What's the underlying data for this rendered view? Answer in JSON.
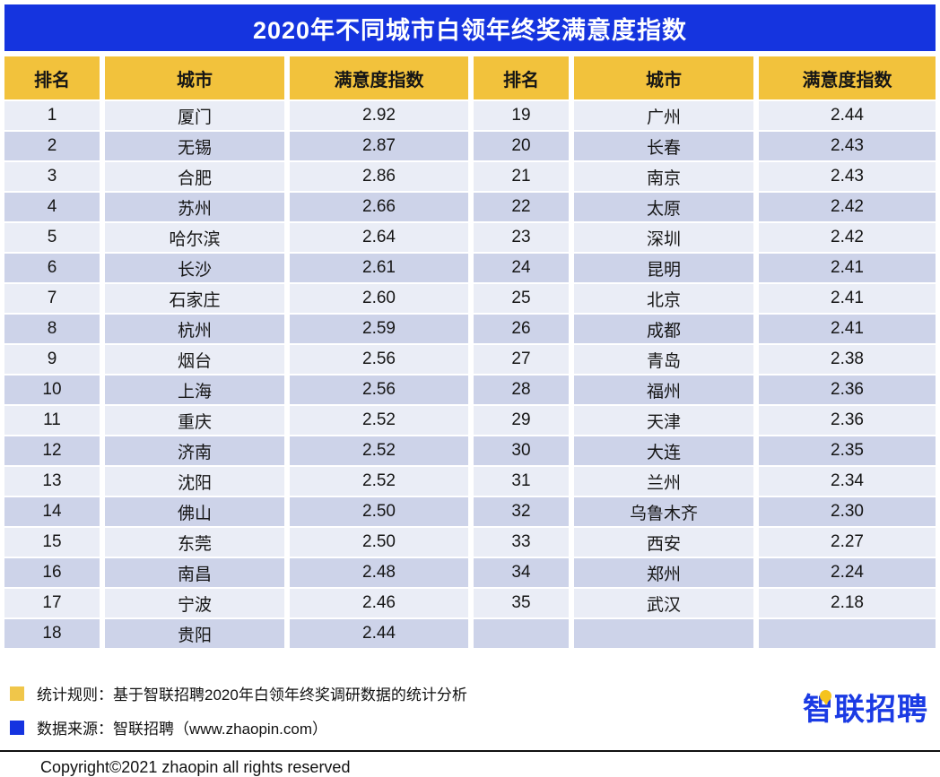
{
  "title": "2020年不同城市白领年终奖满意度指数",
  "columns": [
    "排名",
    "城市",
    "满意度指数",
    "排名",
    "城市",
    "满意度指数"
  ],
  "chart_data": {
    "type": "table",
    "title": "2020年不同城市白领年终奖满意度指数",
    "columns": [
      "排名",
      "城市",
      "满意度指数"
    ],
    "layout": "two column groups: ranks 1-18 left, 19-35 right, striped rows",
    "rows": [
      [
        1,
        "厦门",
        2.92
      ],
      [
        2,
        "无锡",
        2.87
      ],
      [
        3,
        "合肥",
        2.86
      ],
      [
        4,
        "苏州",
        2.66
      ],
      [
        5,
        "哈尔滨",
        2.64
      ],
      [
        6,
        "长沙",
        2.61
      ],
      [
        7,
        "石家庄",
        2.6
      ],
      [
        8,
        "杭州",
        2.59
      ],
      [
        9,
        "烟台",
        2.56
      ],
      [
        10,
        "上海",
        2.56
      ],
      [
        11,
        "重庆",
        2.52
      ],
      [
        12,
        "济南",
        2.52
      ],
      [
        13,
        "沈阳",
        2.52
      ],
      [
        14,
        "佛山",
        2.5
      ],
      [
        15,
        "东莞",
        2.5
      ],
      [
        16,
        "南昌",
        2.48
      ],
      [
        17,
        "宁波",
        2.46
      ],
      [
        18,
        "贵阳",
        2.44
      ],
      [
        19,
        "广州",
        2.44
      ],
      [
        20,
        "长春",
        2.43
      ],
      [
        21,
        "南京",
        2.43
      ],
      [
        22,
        "太原",
        2.42
      ],
      [
        23,
        "深圳",
        2.42
      ],
      [
        24,
        "昆明",
        2.41
      ],
      [
        25,
        "北京",
        2.41
      ],
      [
        26,
        "成都",
        2.41
      ],
      [
        27,
        "青岛",
        2.38
      ],
      [
        28,
        "福州",
        2.36
      ],
      [
        29,
        "天津",
        2.36
      ],
      [
        30,
        "大连",
        2.35
      ],
      [
        31,
        "兰州",
        2.34
      ],
      [
        32,
        "乌鲁木齐",
        2.3
      ],
      [
        33,
        "西安",
        2.27
      ],
      [
        34,
        "郑州",
        2.24
      ],
      [
        35,
        "武汉",
        2.18
      ]
    ]
  },
  "legend": [
    {
      "color": "#F0C64A",
      "label": "统计规则：基于智联招聘2020年白领年终奖调研数据的统计分析"
    },
    {
      "color": "#1533E0",
      "label": "数据来源：智联招聘（www.zhaopin.com）"
    }
  ],
  "logo_text": "智联招聘",
  "copyright": "Copyright©2021 zhaopin all rights reserved",
  "colors": {
    "title_bg": "#1534DF",
    "header_bg": "#F2C23C",
    "row_light": "#EAEDF6",
    "row_dark": "#CDD3E9",
    "logo_blue": "#1B3BE4",
    "pin_yellow": "#F5C31D"
  }
}
